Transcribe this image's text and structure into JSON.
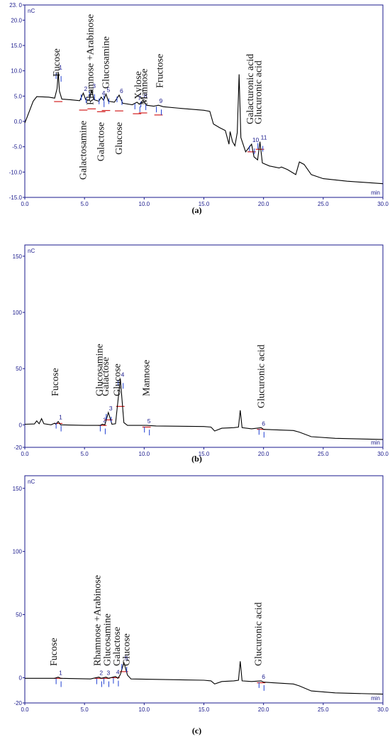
{
  "chart_data": [
    {
      "type": "line",
      "panel_label": "(a)",
      "x_unit": "min",
      "y_unit": "nC",
      "xlim": [
        0.0,
        30.0
      ],
      "ylim": [
        -15.0,
        23.0
      ],
      "x_ticks": [
        "0.0",
        "5.0",
        "10.0",
        "15.0",
        "20.0",
        "25.0",
        "30.0"
      ],
      "y_ticks": [
        "23. 0",
        "20.0",
        "15.0",
        "10.0",
        "5.0",
        "0.0",
        "-5.0",
        "-10.0",
        "-15.0"
      ],
      "y_tick_values": [
        23,
        20,
        15,
        10,
        5,
        0,
        -5,
        -10,
        -15
      ],
      "peaks": [
        {
          "num": "1",
          "name": "Fucose",
          "rt": 2.8,
          "height": 9.8,
          "name_pos": "above"
        },
        {
          "num": "2",
          "name": "Galactosamine",
          "rt": 4.9,
          "height": 5.6,
          "name_pos": "below"
        },
        {
          "num": "3",
          "name": "Rhamnose +Arabinose",
          "rt": 5.6,
          "height": 6.2,
          "name_pos": "above"
        },
        {
          "num": "4",
          "name": "Galactose",
          "rt": 6.4,
          "height": 4.8,
          "name_pos": "below"
        },
        {
          "num": "5",
          "name": "Glucosamine",
          "rt": 6.8,
          "height": 5.4,
          "name_pos": "above"
        },
        {
          "num": "6",
          "name": "Glucose",
          "rt": 7.9,
          "height": 5.2,
          "name_pos": "below"
        },
        {
          "num": "7",
          "name": "Xylose",
          "rt": 9.4,
          "height": 3.8,
          "name_pos": "above"
        },
        {
          "num": "8",
          "name": "Mannose",
          "rt": 9.9,
          "height": 4.2,
          "name_pos": "above"
        },
        {
          "num": "9",
          "name": "Fructose",
          "rt": 11.2,
          "height": 3.2,
          "name_pos": "above"
        },
        {
          "num": "10",
          "name": "Galacturonic acid",
          "rt": 19.0,
          "height": -4.5,
          "name_pos": "above"
        },
        {
          "num": "11",
          "name": "Glucuronic acid",
          "rt": 19.7,
          "height": -4.0,
          "name_pos": "above"
        }
      ],
      "trace": [
        [
          0,
          -0.3
        ],
        [
          0.3,
          1.5
        ],
        [
          0.7,
          4.0
        ],
        [
          1.0,
          4.9
        ],
        [
          2.0,
          4.8
        ],
        [
          2.5,
          4.6
        ],
        [
          2.7,
          6.5
        ],
        [
          2.8,
          9.8
        ],
        [
          2.9,
          6.0
        ],
        [
          3.1,
          4.4
        ],
        [
          3.8,
          4.3
        ],
        [
          4.6,
          4.1
        ],
        [
          4.9,
          5.6
        ],
        [
          5.1,
          4.3
        ],
        [
          5.4,
          4.2
        ],
        [
          5.6,
          6.2
        ],
        [
          5.8,
          4.3
        ],
        [
          6.2,
          4.0
        ],
        [
          6.4,
          4.8
        ],
        [
          6.6,
          4.2
        ],
        [
          6.8,
          5.4
        ],
        [
          7.0,
          4.0
        ],
        [
          7.5,
          3.8
        ],
        [
          7.9,
          5.2
        ],
        [
          8.2,
          3.6
        ],
        [
          9.0,
          3.3
        ],
        [
          9.4,
          3.8
        ],
        [
          9.6,
          3.4
        ],
        [
          9.9,
          4.2
        ],
        [
          10.2,
          3.2
        ],
        [
          10.8,
          3.0
        ],
        [
          11.2,
          3.2
        ],
        [
          11.6,
          2.9
        ],
        [
          13.0,
          2.6
        ],
        [
          15.0,
          2.2
        ],
        [
          15.5,
          2.0
        ],
        [
          15.8,
          -0.5
        ],
        [
          16.3,
          -1.2
        ],
        [
          16.8,
          -1.8
        ],
        [
          17.1,
          -4.5
        ],
        [
          17.2,
          -2.0
        ],
        [
          17.4,
          -4.0
        ],
        [
          17.6,
          -4.8
        ],
        [
          17.8,
          -2.2
        ],
        [
          17.95,
          9.3
        ],
        [
          18.1,
          -3.2
        ],
        [
          18.5,
          -6.0
        ],
        [
          19.0,
          -4.5
        ],
        [
          19.2,
          -7.0
        ],
        [
          19.5,
          -7.6
        ],
        [
          19.7,
          -4.0
        ],
        [
          19.9,
          -8.2
        ],
        [
          20.5,
          -8.8
        ],
        [
          21.3,
          -9.2
        ],
        [
          21.5,
          -9.0
        ],
        [
          22.0,
          -9.5
        ],
        [
          22.7,
          -10.5
        ],
        [
          23.0,
          -8.0
        ],
        [
          23.4,
          -8.5
        ],
        [
          24.0,
          -10.5
        ],
        [
          25.0,
          -11.3
        ],
        [
          27.0,
          -11.8
        ],
        [
          30.0,
          -12.3
        ]
      ]
    },
    {
      "type": "line",
      "panel_label": "(b)",
      "x_unit": "min",
      "y_unit": "nC",
      "xlim": [
        0.0,
        30.0
      ],
      "ylim": [
        -20.0,
        160.0
      ],
      "x_ticks": [
        "0.0",
        "5.0",
        "10.0",
        "15.0",
        "20.0",
        "25.0",
        "30.0"
      ],
      "y_ticks": [
        "150",
        "100",
        "50",
        "0",
        "-20"
      ],
      "y_tick_values": [
        150,
        100,
        50,
        0,
        -20
      ],
      "peaks": [
        {
          "num": "1",
          "name": "Fucose",
          "rt": 2.8,
          "height": 3.0,
          "name_pos": "above"
        },
        {
          "num": "2",
          "name": "Glucosamine",
          "rt": 6.5,
          "height": 0.5,
          "name_pos": "above"
        },
        {
          "num": "3",
          "name": "Galactose",
          "rt": 7.0,
          "height": 11.0,
          "name_pos": "above"
        },
        {
          "num": "4",
          "name": "Glucose",
          "rt": 8.0,
          "height": 41.0,
          "name_pos": "above"
        },
        {
          "num": "5",
          "name": "Mannose",
          "rt": 10.2,
          "height": -0.5,
          "name_pos": "above"
        },
        {
          "num": "6",
          "name": "Glucuronic acid",
          "rt": 19.8,
          "height": -2.5,
          "name_pos": "above"
        }
      ],
      "trace": [
        [
          0,
          0.5
        ],
        [
          0.8,
          0.8
        ],
        [
          1.0,
          3.5
        ],
        [
          1.2,
          1.0
        ],
        [
          1.4,
          5.5
        ],
        [
          1.6,
          1.0
        ],
        [
          2.2,
          0.0
        ],
        [
          2.5,
          1.5
        ],
        [
          2.6,
          0.5
        ],
        [
          2.8,
          3.0
        ],
        [
          3.0,
          0.0
        ],
        [
          5.0,
          -0.5
        ],
        [
          6.3,
          -0.5
        ],
        [
          6.5,
          0.5
        ],
        [
          6.7,
          0.0
        ],
        [
          7.0,
          11.0
        ],
        [
          7.3,
          0.5
        ],
        [
          7.6,
          1.0
        ],
        [
          8.0,
          41.0
        ],
        [
          8.3,
          2.0
        ],
        [
          8.6,
          -0.5
        ],
        [
          10.2,
          -0.5
        ],
        [
          11.0,
          -1.0
        ],
        [
          15.0,
          -1.5
        ],
        [
          15.6,
          -2.0
        ],
        [
          15.9,
          -5.5
        ],
        [
          16.5,
          -3.0
        ],
        [
          17.5,
          -2.5
        ],
        [
          17.9,
          -2.0
        ],
        [
          18.05,
          13.0
        ],
        [
          18.2,
          -2.5
        ],
        [
          19.0,
          -3.5
        ],
        [
          19.8,
          -2.5
        ],
        [
          20.0,
          -4.0
        ],
        [
          22.5,
          -5.0
        ],
        [
          23.0,
          -6.5
        ],
        [
          24.0,
          -10.5
        ],
        [
          26.0,
          -12.0
        ],
        [
          30.0,
          -13.0
        ]
      ]
    },
    {
      "type": "line",
      "panel_label": "(c)",
      "x_unit": "min",
      "y_unit": "nC",
      "xlim": [
        0.0,
        30.0
      ],
      "ylim": [
        -20.0,
        160.0
      ],
      "x_ticks": [
        "0.0",
        "5.0",
        "10.0",
        "15.0",
        "20.0",
        "25.0",
        "30.0"
      ],
      "y_ticks": [
        "150",
        "100",
        "50",
        "0",
        "-20"
      ],
      "y_tick_values": [
        150,
        100,
        50,
        0,
        -20
      ],
      "peaks": [
        {
          "num": "1",
          "name": "Fucose",
          "rt": 2.8,
          "height": 0.5,
          "name_pos": "above"
        },
        {
          "num": "2",
          "name": "Rhamnose +Arabinose",
          "rt": 6.2,
          "height": 0.5,
          "name_pos": "above"
        },
        {
          "num": "3",
          "name": "Glucosamine",
          "rt": 6.8,
          "height": 0.5,
          "name_pos": "above"
        },
        {
          "num": "4",
          "name": "Galactose",
          "rt": 7.6,
          "height": 1.0,
          "name_pos": "above"
        },
        {
          "num": "5",
          "name": "Glucose",
          "rt": 8.3,
          "height": 12.0,
          "name_pos": "above"
        },
        {
          "num": "6",
          "name": "Glucuronic acid",
          "rt": 19.8,
          "height": -2.5,
          "name_pos": "above"
        }
      ],
      "trace": [
        [
          0,
          -0.5
        ],
        [
          2.5,
          -0.5
        ],
        [
          2.8,
          0.5
        ],
        [
          3.0,
          -0.5
        ],
        [
          5.5,
          -1.0
        ],
        [
          6.2,
          0.5
        ],
        [
          6.4,
          -0.5
        ],
        [
          6.8,
          0.5
        ],
        [
          7.0,
          -0.5
        ],
        [
          7.6,
          1.0
        ],
        [
          7.8,
          -0.5
        ],
        [
          8.0,
          2.5
        ],
        [
          8.3,
          12.0
        ],
        [
          8.6,
          2.0
        ],
        [
          8.9,
          -1.0
        ],
        [
          15.0,
          -2.0
        ],
        [
          15.6,
          -2.5
        ],
        [
          15.9,
          -5.0
        ],
        [
          16.5,
          -3.0
        ],
        [
          17.5,
          -2.5
        ],
        [
          17.9,
          -2.0
        ],
        [
          18.05,
          13.0
        ],
        [
          18.2,
          -2.5
        ],
        [
          19.0,
          -3.0
        ],
        [
          19.8,
          -2.5
        ],
        [
          20.0,
          -3.5
        ],
        [
          22.5,
          -5.0
        ],
        [
          23.0,
          -6.5
        ],
        [
          24.0,
          -10.5
        ],
        [
          26.0,
          -12.0
        ],
        [
          30.0,
          -13.0
        ]
      ]
    }
  ],
  "colors": {
    "trace": "#000000",
    "baseline": "#d21f1f",
    "marker": "#1f3fd2",
    "axis": "#1a1a8c"
  }
}
